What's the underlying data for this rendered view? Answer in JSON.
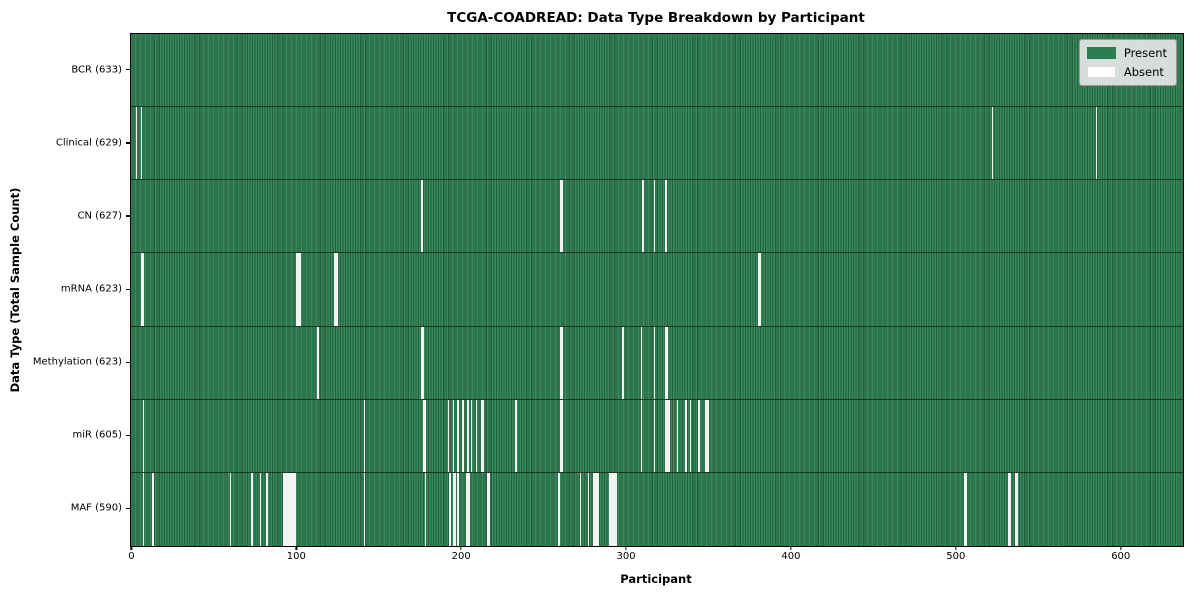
{
  "title": "TCGA-COADREAD: Data Type Breakdown by Participant",
  "xlabel": "Participant",
  "ylabel": "Data Type (Total Sample Count)",
  "colors": {
    "present": "#2e7d52",
    "present_stripe_dark": "#24603f",
    "present_stripe_light": "#378a5c",
    "absent": "#ffffff",
    "frame": "#000000",
    "legend_bg": "#e9e9e9"
  },
  "legend": {
    "entries": [
      {
        "label": "Present",
        "color": "#2e7d52"
      },
      {
        "label": "Absent",
        "color": "#ffffff"
      }
    ]
  },
  "chart_data": {
    "type": "heatmap",
    "title": "TCGA-COADREAD: Data Type Breakdown by Participant",
    "xlabel": "Participant",
    "ylabel": "Data Type (Total Sample Count)",
    "x_axis": {
      "ticks": [
        0,
        100,
        200,
        300,
        400,
        500,
        600
      ],
      "max": 638
    },
    "legend_position": "upper right",
    "grid": false,
    "rows": [
      {
        "name": "BCR",
        "label": "BCR (633)",
        "total": 633,
        "absent": []
      },
      {
        "name": "Clinical",
        "label": "Clinical (629)",
        "total": 629,
        "absent": [
          3,
          6,
          522,
          585
        ]
      },
      {
        "name": "CN",
        "label": "CN (627)",
        "total": 627,
        "absent": [
          176,
          260,
          261,
          310,
          317,
          324
        ]
      },
      {
        "name": "mRNA",
        "label": "mRNA (623)",
        "total": 623,
        "absent": [
          6,
          7,
          100,
          101,
          102,
          123,
          124,
          125,
          380,
          381
        ]
      },
      {
        "name": "Methylation",
        "label": "Methylation (623)",
        "total": 623,
        "absent": [
          113,
          176,
          177,
          260,
          261,
          298,
          309,
          317,
          324,
          325
        ]
      },
      {
        "name": "miR",
        "label": "miR (605)",
        "total": 605,
        "absent": [
          7,
          141,
          177,
          178,
          192,
          195,
          198,
          201,
          204,
          206,
          209,
          212,
          213,
          233,
          260,
          261,
          309,
          317,
          324,
          325,
          326,
          331,
          336,
          339,
          344,
          348,
          349,
          350
        ]
      },
      {
        "name": "MAF",
        "label": "MAF (590)",
        "total": 590,
        "absent": [
          7,
          13,
          60,
          73,
          78,
          82,
          92,
          93,
          94,
          95,
          96,
          97,
          98,
          99,
          141,
          178,
          193,
          195,
          196,
          198,
          203,
          204,
          205,
          216,
          217,
          259,
          272,
          277,
          280,
          281,
          282,
          283,
          290,
          291,
          292,
          293,
          294,
          505,
          506,
          532,
          533,
          536,
          537
        ]
      }
    ]
  }
}
